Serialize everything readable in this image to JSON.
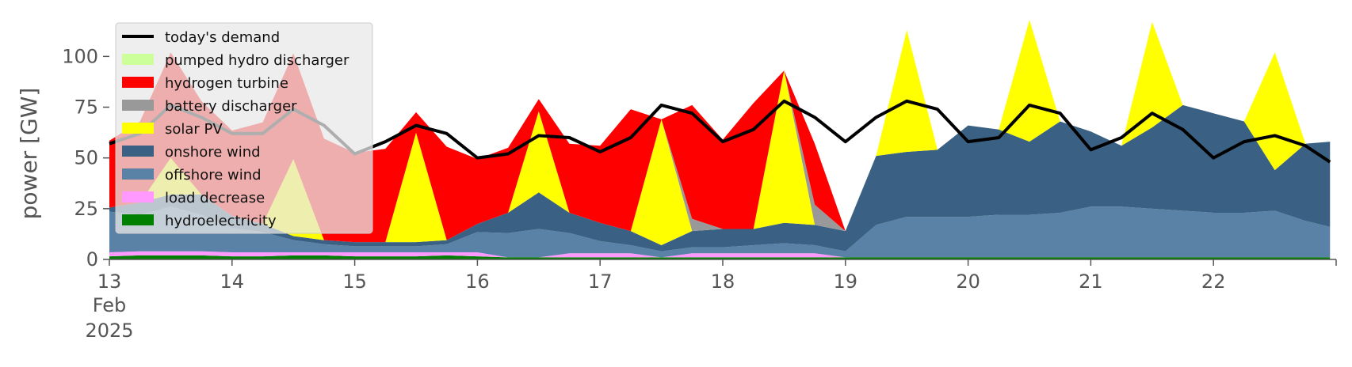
{
  "chart_data": {
    "type": "area",
    "ylabel": "power [GW]",
    "ylim": [
      0,
      120
    ],
    "yticks": [
      0,
      25,
      50,
      75,
      100
    ],
    "xlim": [
      0,
      10
    ],
    "xticks": [
      {
        "x": 0,
        "label": "13",
        "sub": [
          "Feb",
          "2025"
        ]
      },
      {
        "x": 1,
        "label": "14"
      },
      {
        "x": 2,
        "label": "15"
      },
      {
        "x": 3,
        "label": "16"
      },
      {
        "x": 4,
        "label": "17"
      },
      {
        "x": 5,
        "label": "18"
      },
      {
        "x": 6,
        "label": "19"
      },
      {
        "x": 7,
        "label": "20"
      },
      {
        "x": 8,
        "label": "21"
      },
      {
        "x": 9,
        "label": "22"
      }
    ],
    "legend_position": "top-left",
    "x": [
      0,
      0.25,
      0.5,
      0.75,
      1,
      1.25,
      1.5,
      1.75,
      2,
      2.25,
      2.5,
      2.75,
      3,
      3.25,
      3.5,
      3.75,
      4,
      4.25,
      4.5,
      4.75,
      5,
      5.25,
      5.5,
      5.75,
      6,
      6.25,
      6.5,
      6.75,
      7,
      7.25,
      7.5,
      7.75,
      8,
      8.25,
      8.5,
      8.75,
      9,
      9.25,
      9.5,
      9.75,
      9.95
    ],
    "series": [
      {
        "name": "hydroelectricity",
        "color": "#008000",
        "values": [
          1.5,
          2,
          2,
          2,
          1.5,
          1.5,
          2,
          2,
          1.5,
          1.5,
          1.5,
          2,
          1.5,
          1,
          1,
          1,
          1,
          1,
          1,
          1,
          1,
          1,
          1,
          1,
          1,
          1,
          1,
          1,
          1,
          1,
          1,
          1,
          1,
          1,
          1,
          1,
          1,
          1,
          1,
          1,
          1
        ]
      },
      {
        "name": "load decrease",
        "color": "#ff99ff",
        "values": [
          2,
          2,
          2,
          2,
          2,
          2,
          1.5,
          1.5,
          2,
          2,
          2,
          1.5,
          2,
          0,
          0,
          2,
          2,
          2,
          0,
          2,
          2,
          2,
          2,
          2,
          0,
          0,
          0,
          0,
          0,
          0,
          0,
          0,
          0,
          0,
          0,
          0,
          0,
          0,
          0,
          0,
          0
        ]
      },
      {
        "name": "offshore wind",
        "color": "#5a82a6",
        "values": [
          20,
          18,
          22,
          18,
          12,
          10,
          6,
          4,
          3,
          3,
          3,
          4,
          10,
          12,
          14,
          10,
          6,
          4,
          3,
          3,
          3,
          4,
          5,
          4,
          3,
          16,
          20,
          20,
          20,
          21,
          21,
          22,
          25,
          25,
          24,
          23,
          22,
          22,
          23,
          18,
          15
        ]
      },
      {
        "name": "onshore wind",
        "color": "#3a6184",
        "values": [
          2,
          6,
          6,
          10,
          6,
          4,
          2,
          2,
          2,
          2,
          2,
          2,
          4,
          10,
          18,
          10,
          9,
          7,
          3,
          8,
          9,
          8,
          10,
          10,
          10,
          34,
          32,
          33,
          45,
          42,
          36,
          45,
          37,
          30,
          40,
          52,
          49,
          45,
          20,
          38,
          42
        ]
      },
      {
        "name": "solar PV",
        "color": "#ffff00",
        "values": [
          0,
          0,
          18,
          0,
          0,
          0,
          38,
          0,
          0,
          0,
          54,
          0,
          0,
          0,
          40,
          0,
          0,
          0,
          62,
          0,
          0,
          0,
          75,
          0,
          0,
          0,
          60,
          0,
          0,
          0,
          60,
          0,
          0,
          0,
          52,
          0,
          0,
          0,
          58,
          0,
          0
        ]
      },
      {
        "name": "battery discharger",
        "color": "#999999",
        "values": [
          0,
          0,
          0,
          0,
          0,
          0,
          0,
          0,
          0,
          0,
          0,
          0,
          0,
          0,
          0,
          0,
          0,
          0,
          0,
          6,
          0,
          0,
          0,
          10,
          0,
          0,
          0,
          0,
          0,
          0,
          0,
          0,
          0,
          0,
          0,
          0,
          0,
          0,
          0,
          0,
          0
        ]
      },
      {
        "name": "hydrogen turbine",
        "color": "#ff0000",
        "values": [
          33,
          40,
          52,
          46,
          42,
          50,
          52,
          50,
          44,
          46,
          10,
          46,
          32,
          32,
          6,
          34,
          38,
          60,
          0,
          56,
          44,
          62,
          0,
          30,
          0,
          0,
          0,
          0,
          0,
          0,
          0,
          0,
          0,
          0,
          0,
          0,
          0,
          0,
          0,
          0,
          0
        ]
      },
      {
        "name": "pumped hydro discharger",
        "color": "#ccff99",
        "values": [
          0,
          0,
          0,
          0,
          0,
          0,
          0,
          0,
          0,
          0,
          0,
          0,
          0,
          0,
          0,
          0,
          0,
          0,
          0,
          0,
          0,
          0,
          0,
          0,
          0,
          0,
          0,
          0,
          0,
          0,
          0,
          0,
          0,
          0,
          0,
          0,
          0,
          0,
          0,
          0,
          0
        ]
      }
    ],
    "demand": {
      "name": "today's demand",
      "color": "#000000",
      "values": [
        57,
        62,
        76,
        70,
        62,
        62,
        74,
        66,
        52,
        58,
        66,
        62,
        50,
        52,
        61,
        60,
        53,
        60,
        76,
        72,
        58,
        64,
        78,
        70,
        58,
        70,
        78,
        74,
        58,
        60,
        76,
        72,
        54,
        60,
        72,
        64,
        50,
        58,
        61,
        56,
        48
      ]
    },
    "legend": [
      "today's demand",
      "pumped hydro discharger",
      "hydrogen turbine",
      "battery discharger",
      "solar PV",
      "onshore wind",
      "offshore wind",
      "load decrease",
      "hydroelectricity"
    ]
  }
}
